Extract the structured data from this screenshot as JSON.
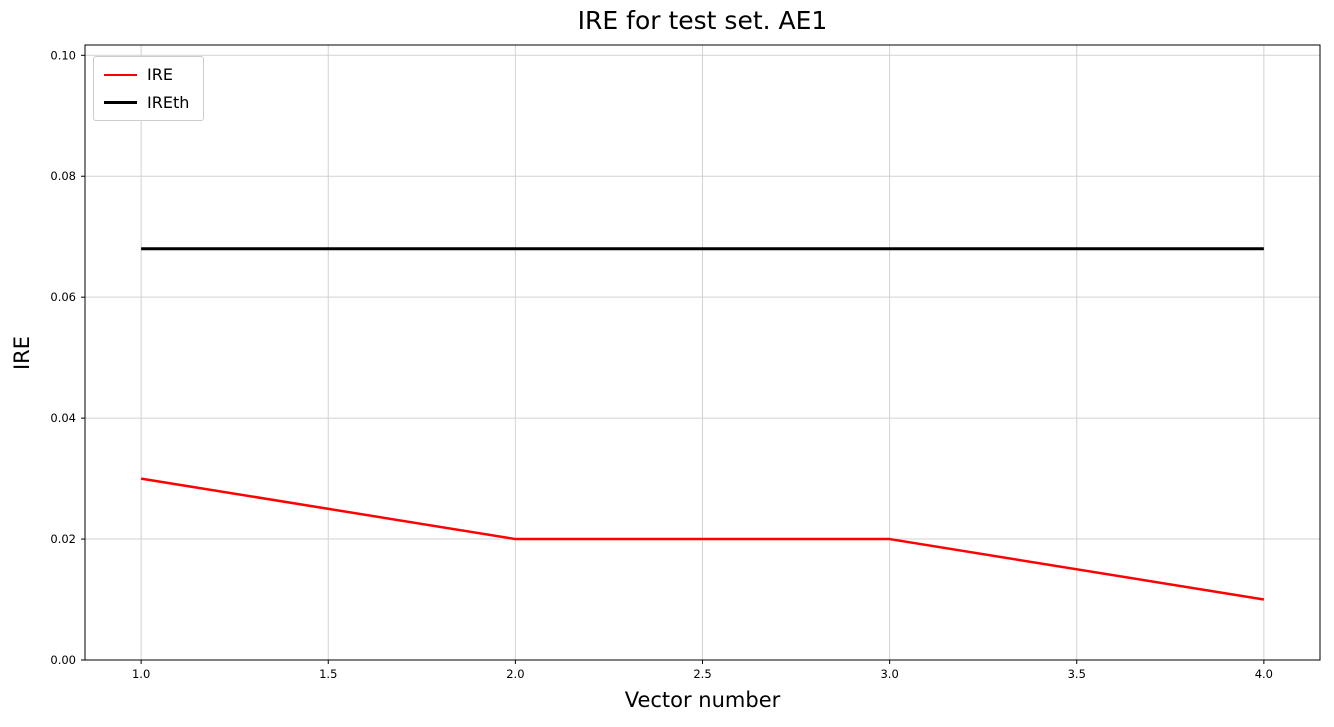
{
  "title": "IRE for test set. AE1",
  "chart_data": {
    "type": "line",
    "title": "IRE for test set. AE1",
    "xlabel": "Vector number",
    "ylabel": "IRE",
    "x": [
      1.0,
      2.0,
      3.0,
      4.0
    ],
    "series": [
      {
        "name": "IRE",
        "color": "#ff0000",
        "line_width": 2.5,
        "values": [
          0.03,
          0.02,
          0.02,
          0.01
        ]
      },
      {
        "name": "IREth",
        "color": "#000000",
        "line_width": 3,
        "values": [
          0.068,
          0.068,
          0.068,
          0.068
        ]
      }
    ],
    "xlim": [
      0.85,
      4.15
    ],
    "ylim": [
      0.0,
      0.1
    ],
    "xticks": [
      1.0,
      1.5,
      2.0,
      2.5,
      3.0,
      3.5,
      4.0
    ],
    "xtick_labels": [
      "1.0",
      "1.5",
      "2.0",
      "2.5",
      "3.0",
      "3.5",
      "4.0"
    ],
    "yticks": [
      0.0,
      0.02,
      0.04,
      0.06,
      0.08,
      0.1
    ],
    "ytick_labels": [
      "0.00",
      "0.02",
      "0.04",
      "0.06",
      "0.08",
      "0.10"
    ],
    "grid": true,
    "grid_color": "#d2d2d2",
    "frame_color": "#000000",
    "legend_position": "upper left",
    "legend": [
      "IRE",
      "IREth"
    ]
  }
}
